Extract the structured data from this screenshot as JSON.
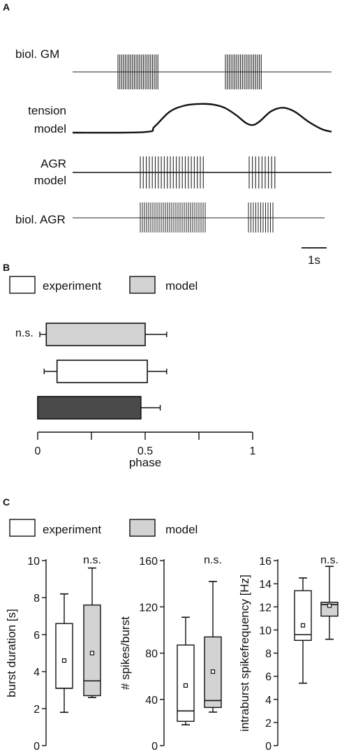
{
  "panel_a": {
    "letter": "A",
    "trace_labels": {
      "gm": "biol. GM",
      "tension_1": "tension",
      "tension_2": "model",
      "agr_model_1": "AGR",
      "agr_model_2": "model",
      "agr_biol": "biol. AGR"
    },
    "scale_bar_label": "1s",
    "tension_profile": [
      [
        0.0,
        0.0
      ],
      [
        3.7,
        0.02
      ],
      [
        4.2,
        0.2
      ],
      [
        5.0,
        0.72
      ],
      [
        5.8,
        0.93
      ],
      [
        6.6,
        0.98
      ],
      [
        7.2,
        0.96
      ],
      [
        7.8,
        0.85
      ],
      [
        8.4,
        0.6
      ],
      [
        8.9,
        0.33
      ],
      [
        9.25,
        0.26
      ],
      [
        9.6,
        0.38
      ],
      [
        10.2,
        0.73
      ],
      [
        10.8,
        0.85
      ],
      [
        11.4,
        0.72
      ],
      [
        12.1,
        0.38
      ],
      [
        12.8,
        0.12
      ],
      [
        13.3,
        0.03
      ]
    ]
  },
  "panel_b": {
    "letter": "B",
    "legend": {
      "experiment": "experiment",
      "model": "model"
    },
    "annotation": "n.s.",
    "xlabel": "phase",
    "xticks": [
      0,
      0.5,
      1
    ],
    "xtick_labels": [
      "0",
      "0.5",
      "1"
    ],
    "xlim": [
      0,
      1
    ],
    "colors": {
      "light": "#d3d3d3",
      "white": "#ffffff",
      "dark": "#4a4a4a"
    }
  },
  "panel_c": {
    "letter": "C",
    "legend": {
      "experiment": "experiment",
      "model": "model"
    },
    "annotation": "n.s."
  },
  "chart_data": [
    {
      "type": "bar",
      "orientation": "horizontal",
      "title": "",
      "xlabel": "phase",
      "xlim": [
        0,
        1
      ],
      "series": [
        {
          "name": "model",
          "start": 0.04,
          "end": 0.5,
          "err_low": 0.01,
          "err_high": 0.6,
          "color": "#d3d3d3"
        },
        {
          "name": "experiment",
          "start": 0.09,
          "end": 0.51,
          "err_low": 0.03,
          "err_high": 0.6,
          "color": "#ffffff"
        },
        {
          "start": 0.0,
          "end": 0.48,
          "err_high": 0.57,
          "color": "#4a4a4a"
        }
      ]
    },
    {
      "type": "box",
      "ylabel": "burst duration [s]",
      "ylim": [
        0,
        10
      ],
      "yticks": [
        0,
        2,
        4,
        6,
        8,
        10
      ],
      "series": [
        {
          "name": "experiment",
          "min": 1.8,
          "q1": 3.1,
          "median": 3.1,
          "q3": 6.6,
          "max": 8.2,
          "mean": 4.6,
          "color": "#ffffff"
        },
        {
          "name": "model",
          "min": 2.6,
          "q1": 2.7,
          "median": 3.5,
          "q3": 7.6,
          "max": 9.6,
          "mean": 5.0,
          "color": "#d3d3d3"
        }
      ]
    },
    {
      "type": "box",
      "ylabel": "# spikes/burst",
      "ylim": [
        0,
        160
      ],
      "yticks": [
        0,
        40,
        80,
        120,
        160
      ],
      "series": [
        {
          "name": "experiment",
          "min": 18,
          "q1": 21,
          "median": 30,
          "q3": 87,
          "max": 111,
          "mean": 52,
          "color": "#ffffff"
        },
        {
          "name": "model",
          "min": 29,
          "q1": 33,
          "median": 39,
          "q3": 94,
          "max": 142,
          "mean": 64,
          "color": "#d3d3d3"
        }
      ]
    },
    {
      "type": "box",
      "ylabel": "intraburst spikefrequency [Hz]",
      "ylim": [
        0,
        16
      ],
      "yticks": [
        0,
        2,
        4,
        6,
        8,
        10,
        12,
        14,
        16
      ],
      "series": [
        {
          "name": "experiment",
          "min": 5.4,
          "q1": 9.1,
          "median": 9.6,
          "q3": 13.4,
          "max": 14.5,
          "mean": 10.4,
          "color": "#ffffff"
        },
        {
          "name": "model",
          "min": 9.2,
          "q1": 11.2,
          "median": 12.2,
          "q3": 12.4,
          "max": 15.5,
          "mean": 12.1,
          "color": "#d3d3d3"
        }
      ]
    }
  ]
}
